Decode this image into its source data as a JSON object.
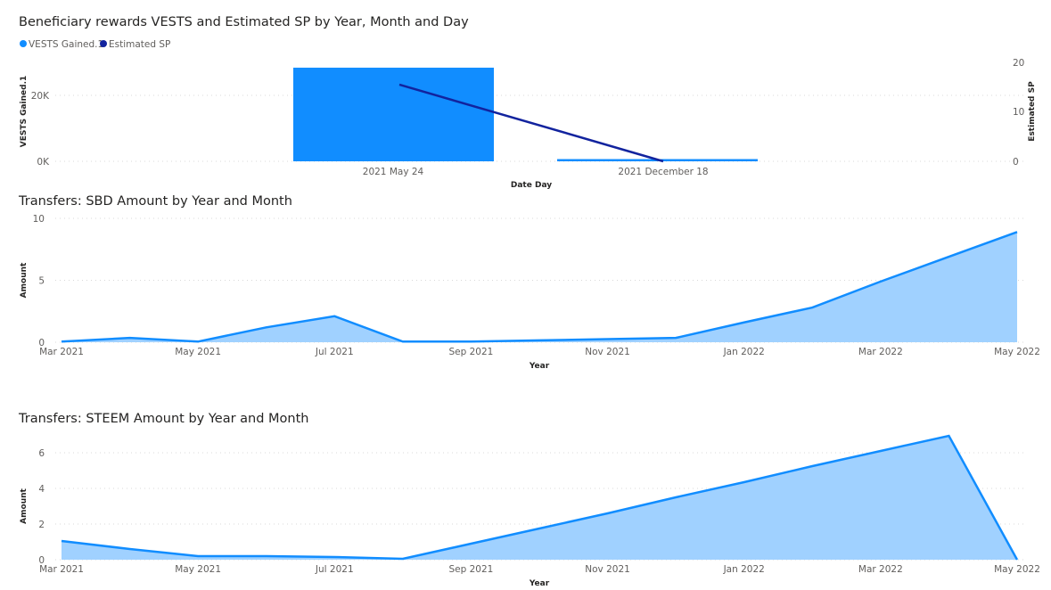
{
  "colors": {
    "bar": "#118DFF",
    "line": "#12239E",
    "area_line": "#118DFF",
    "area_fill": "#A0D1FF",
    "grid": "#d9d9d9",
    "text": "#605E5C",
    "title": "#252423"
  },
  "chart_data": [
    {
      "type": "bar+line",
      "title": "Beneficiary rewards VESTS and Estimated SP by Year, Month and Day",
      "legend": [
        "VESTS Gained.1",
        "Estimated SP"
      ],
      "legend_position": "top-left",
      "categories": [
        "2021 May 24",
        "2021 December 18"
      ],
      "xlabel": "Date Day",
      "ylabel": "VESTS Gained.1",
      "y2label": "Estimated SP",
      "yticks": [
        "0K",
        "20K"
      ],
      "ylim": [
        0,
        30000
      ],
      "y2ticks": [
        "0",
        "10",
        "20"
      ],
      "y2lim": [
        0,
        20
      ],
      "series": [
        {
          "name": "VESTS Gained.1",
          "type": "bar",
          "values": [
            28400,
            300
          ]
        },
        {
          "name": "Estimated SP",
          "type": "line",
          "values": [
            15.5,
            0
          ]
        }
      ]
    },
    {
      "type": "area",
      "title": "Transfers: SBD Amount by Year and Month",
      "xlabel": "Year",
      "ylabel": "Amount",
      "yticks": [
        "0",
        "5",
        "10"
      ],
      "ylim": [
        0,
        10
      ],
      "xticks": [
        "Mar 2021",
        "May 2021",
        "Jul 2021",
        "Sep 2021",
        "Nov 2021",
        "Jan 2022",
        "Mar 2022",
        "May 2022"
      ],
      "x": [
        "2021-03",
        "2021-04",
        "2021-05",
        "2021-06",
        "2021-07",
        "2021-08",
        "2021-09",
        "2021-10",
        "2021-11",
        "2021-12",
        "2022-01",
        "2022-02",
        "2022-03",
        "2022-04",
        "2022-05"
      ],
      "values": [
        0.05,
        0.35,
        0.05,
        1.2,
        2.1,
        0.05,
        0.05,
        0.15,
        0.25,
        0.35,
        1.6,
        2.8,
        4.9,
        6.9,
        8.9
      ]
    },
    {
      "type": "area",
      "title": "Transfers: STEEM Amount by Year and Month",
      "xlabel": "Year",
      "ylabel": "Amount",
      "yticks": [
        "0",
        "2",
        "4",
        "6"
      ],
      "ylim": [
        0,
        7.5
      ],
      "xticks": [
        "Mar 2021",
        "May 2021",
        "Jul 2021",
        "Sep 2021",
        "Nov 2021",
        "Jan 2022",
        "Mar 2022",
        "May 2022"
      ],
      "x": [
        "2021-03",
        "2021-04",
        "2021-05",
        "2021-06",
        "2021-07",
        "2021-08",
        "2021-09",
        "2021-10",
        "2021-11",
        "2021-12",
        "2022-01",
        "2022-02",
        "2022-03",
        "2022-04",
        "2022-05"
      ],
      "values": [
        1.05,
        0.6,
        0.2,
        0.2,
        0.15,
        0.05,
        0.9,
        1.75,
        2.6,
        3.5,
        4.35,
        5.25,
        6.1,
        6.95,
        0
      ]
    }
  ]
}
